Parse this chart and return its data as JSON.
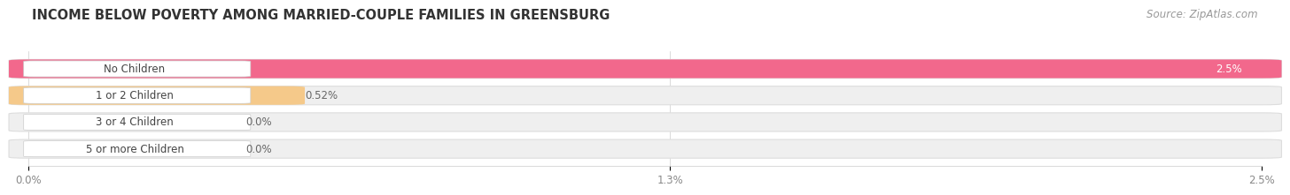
{
  "title": "INCOME BELOW POVERTY AMONG MARRIED-COUPLE FAMILIES IN GREENSBURG",
  "source": "Source: ZipAtlas.com",
  "categories": [
    "No Children",
    "1 or 2 Children",
    "3 or 4 Children",
    "5 or more Children"
  ],
  "values": [
    2.5,
    0.52,
    0.0,
    0.0
  ],
  "value_labels": [
    "2.5%",
    "0.52%",
    "0.0%",
    "0.0%"
  ],
  "bar_colors": [
    "#F2688C",
    "#F5C98A",
    "#F0A0A0",
    "#AABFE0"
  ],
  "bar_bg_color": "#EFEFEF",
  "bar_edge_color": "#DDDDDD",
  "xlim": [
    0,
    2.5
  ],
  "xticks": [
    0.0,
    1.3,
    2.5
  ],
  "xtick_labels": [
    "0.0%",
    "1.3%",
    "2.5%"
  ],
  "title_fontsize": 10.5,
  "source_fontsize": 8.5,
  "label_fontsize": 8.5,
  "value_fontsize": 8.5,
  "tick_fontsize": 8.5,
  "bar_height": 0.62,
  "background_color": "#FFFFFF",
  "label_box_color": "#FFFFFF",
  "value_label_color_inside": "#FFFFFF",
  "value_label_color_outside": "#666666"
}
